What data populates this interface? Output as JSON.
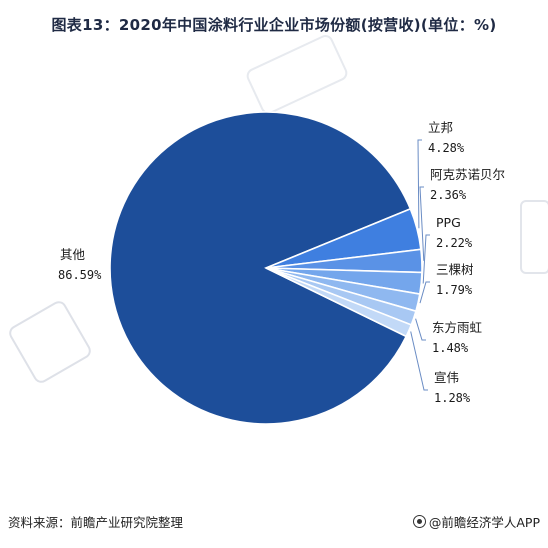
{
  "title": "图表13：2020年中国涂料行业企业市场份额(按营收)(单位：%)",
  "source": "资料来源：前瞻产业研究院整理",
  "credit": "@前瞻经济学人APP",
  "chart_data": {
    "type": "pie",
    "slices": [
      {
        "label": "其他",
        "value_text": "86.59%",
        "value": 86.59,
        "color": "#1d4e9a"
      },
      {
        "label": "立邦",
        "value_text": "4.28%",
        "value": 4.28,
        "color": "#3f7fe0"
      },
      {
        "label": "阿克苏诺贝尔",
        "value_text": "2.36%",
        "value": 2.36,
        "color": "#5a92e6"
      },
      {
        "label": "PPG",
        "value_text": "2.22%",
        "value": 2.22,
        "color": "#74a6ec"
      },
      {
        "label": "三棵树",
        "value_text": "1.79%",
        "value": 1.79,
        "color": "#8fb8f0"
      },
      {
        "label": "东方雨虹",
        "value_text": "1.48%",
        "value": 1.48,
        "color": "#a8c8f3"
      },
      {
        "label": "宣伟",
        "value_text": "1.28%",
        "value": 1.28,
        "color": "#c2d9f7"
      }
    ]
  }
}
